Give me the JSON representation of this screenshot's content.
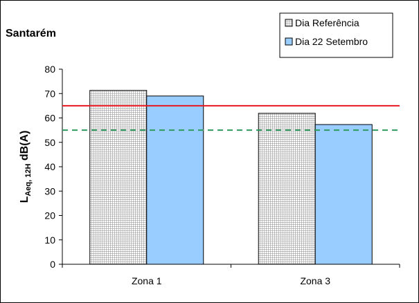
{
  "chart_data": {
    "type": "bar",
    "title": "Santarém",
    "categories": [
      "Zona 1",
      "Zona 3"
    ],
    "series": [
      {
        "name": "Dia Referência",
        "values": [
          71.3,
          61.9
        ],
        "pattern": "grid",
        "color": "#c8c8c8"
      },
      {
        "name": "Dia 22 Setembro",
        "values": [
          69.0,
          57.3
        ],
        "color": "#99ccff"
      }
    ],
    "ylabel": {
      "main": "L",
      "sub": "Aeq, 12H",
      "unit": " dB(A)"
    },
    "ylim": [
      0,
      80
    ],
    "yticks": [
      0,
      10,
      20,
      30,
      40,
      50,
      60,
      70,
      80
    ],
    "reference_lines": [
      {
        "value": 65,
        "style": "solid",
        "color": "#e8161c"
      },
      {
        "value": 55,
        "style": "dashed",
        "color": "#2e9a5e"
      }
    ],
    "grid": false,
    "legend_position": "top-right"
  }
}
